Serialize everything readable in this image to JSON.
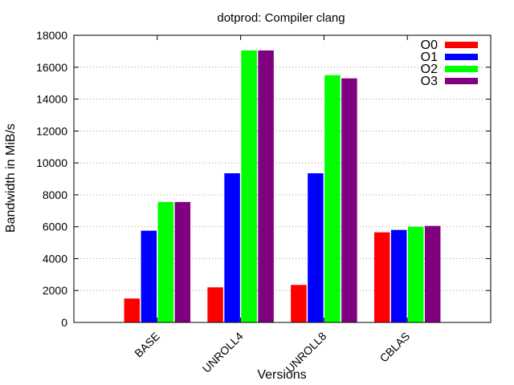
{
  "chart_data": {
    "type": "bar",
    "title": "dotprod: Compiler clang",
    "xlabel": "Versions",
    "ylabel": "Bandwidth in MiB/s",
    "categories": [
      "BASE",
      "UNROLL4",
      "UNROLL8",
      "CBLAS"
    ],
    "ylim": [
      0,
      18000
    ],
    "yticks": [
      0,
      2000,
      4000,
      6000,
      8000,
      10000,
      12000,
      14000,
      16000,
      18000
    ],
    "grid": "y-dotted",
    "legend_position": "top-right",
    "series": [
      {
        "name": "O0",
        "color": "#ff0000",
        "values": [
          1500,
          2200,
          2350,
          5650
        ]
      },
      {
        "name": "O1",
        "color": "#0000ff",
        "values": [
          5750,
          9350,
          9350,
          5800
        ]
      },
      {
        "name": "O2",
        "color": "#00ff00",
        "values": [
          7550,
          17050,
          15500,
          6000
        ]
      },
      {
        "name": "O3",
        "color": "#800080",
        "values": [
          7550,
          17050,
          15300,
          6050
        ]
      }
    ]
  }
}
